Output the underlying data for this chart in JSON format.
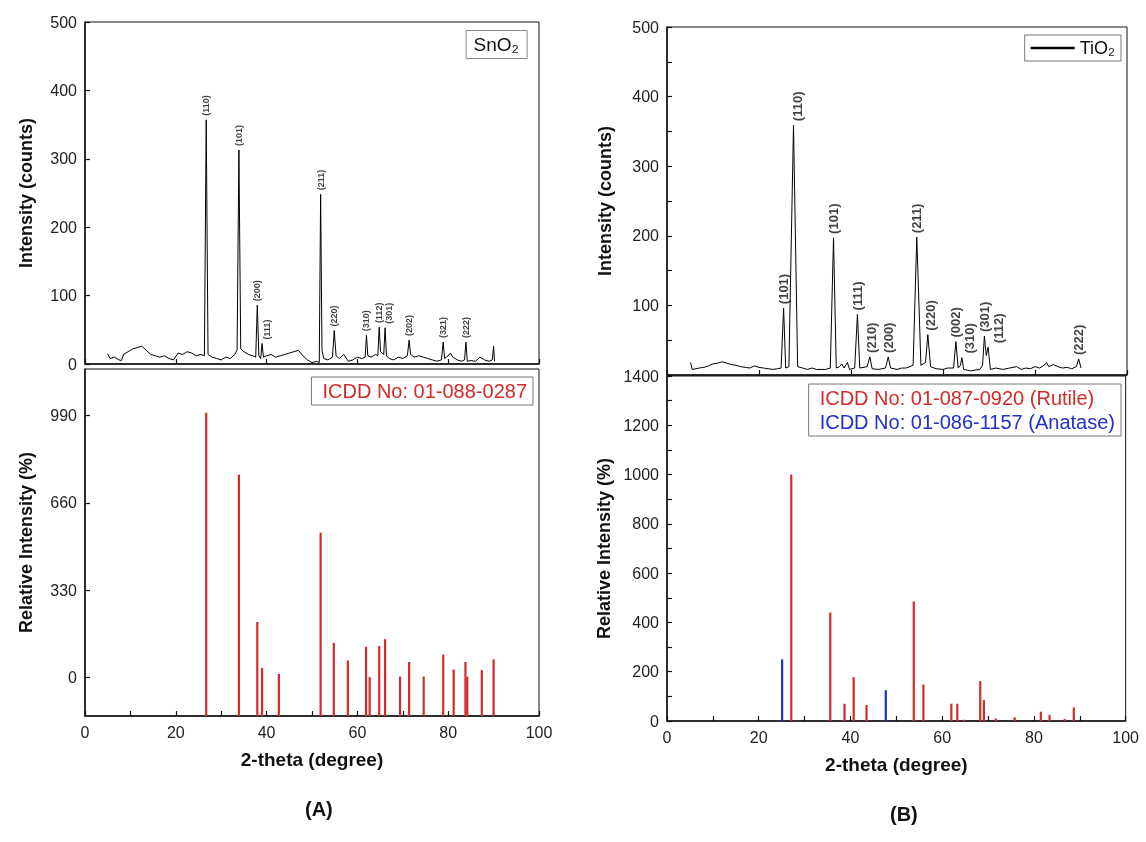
{
  "chart_data": [
    {
      "type": "line",
      "ylabel": "Intensity (counts)",
      "xlim": [
        0,
        100
      ],
      "xticks": [
        0,
        20,
        40,
        60,
        80,
        100
      ],
      "ylim": [
        0,
        500
      ],
      "yticks": [
        0,
        100,
        200,
        300,
        400,
        500
      ],
      "tick_labels": "y",
      "series": [
        {
          "color": "#000000",
          "x": [
            5,
            5.5,
            6.5,
            7.5,
            8,
            8.5,
            9.5,
            10.5,
            11.5,
            12.5,
            13.5,
            14.5,
            15.5,
            16.5,
            17.5,
            18.5,
            19.5,
            20.5,
            21.5,
            22.5,
            23.5,
            24.5,
            25.5,
            26.3,
            26.7,
            27.1,
            28,
            29,
            30,
            31,
            32,
            33,
            33.5,
            33.9,
            34.3,
            35,
            36,
            37,
            37.6,
            37.95,
            38.3,
            38.7,
            39,
            39.3,
            40,
            41,
            42,
            43,
            44,
            45,
            46,
            47,
            48,
            49,
            50,
            51,
            51.6,
            51.9,
            52.2,
            52.6,
            53.5,
            54.5,
            54.9,
            55.3,
            56,
            57,
            58,
            59,
            60,
            61,
            61.7,
            62,
            62.3,
            63,
            64,
            64.5,
            64.8,
            65.1,
            65.8,
            66.1,
            66.4,
            67,
            68,
            69,
            70,
            71,
            71.4,
            71.7,
            72.5,
            73.5,
            74.5,
            75.5,
            76.5,
            77.5,
            78.5,
            78.9,
            79.2,
            80,
            80.5,
            81,
            82,
            83,
            83.6,
            83.9,
            84.2,
            85,
            86,
            87,
            88,
            89,
            89.7,
            90,
            90.2
          ],
          "values": [
            15,
            8,
            10,
            6,
            5,
            14,
            18,
            22,
            24,
            26,
            20,
            14,
            12,
            10,
            12,
            8,
            6,
            16,
            14,
            18,
            16,
            12,
            14,
            12,
            357,
            14,
            10,
            8,
            6,
            10,
            8,
            14,
            20,
            313,
            22,
            18,
            14,
            12,
            10,
            86,
            12,
            8,
            30,
            10,
            12,
            14,
            10,
            12,
            14,
            16,
            18,
            20,
            12,
            6,
            2,
            4,
            2,
            248,
            20,
            8,
            6,
            10,
            49,
            12,
            8,
            14,
            4,
            6,
            10,
            8,
            10,
            42,
            12,
            10,
            14,
            12,
            54,
            18,
            14,
            53,
            12,
            8,
            6,
            10,
            8,
            12,
            35,
            14,
            10,
            12,
            10,
            8,
            6,
            4,
            6,
            32,
            8,
            12,
            16,
            10,
            6,
            4,
            6,
            32,
            4,
            5,
            4,
            10,
            6,
            4,
            6,
            26,
            4
          ]
        }
      ],
      "annotations": [
        "SnO₂",
        {
          "text": "(110)",
          "x": 26.7,
          "y": 357
        },
        {
          "text": "(101)",
          "x": 33.9,
          "y": 313
        },
        {
          "text": "(200)",
          "x": 37.95,
          "y": 86
        },
        {
          "text": "(111)",
          "x": 39,
          "y": 30
        },
        {
          "text": "(211)",
          "x": 51.9,
          "y": 248
        },
        {
          "text": "(220)",
          "x": 54.9,
          "y": 49
        },
        {
          "text": "(310)",
          "x": 62,
          "y": 42
        },
        {
          "text": "(112)",
          "x": 64.8,
          "y": 54
        },
        {
          "text": "(301)",
          "x": 66.1,
          "y": 53
        },
        {
          "text": "(202)",
          "x": 71.4,
          "y": 35
        },
        {
          "text": "(321)",
          "x": 78.9,
          "y": 32
        },
        {
          "text": "(222)",
          "x": 83.9,
          "y": 32
        }
      ]
    },
    {
      "type": "bar",
      "xlabel": "2-theta (degree)",
      "ylabel": "Relative Intensity (%)",
      "xlim": [
        0,
        100
      ],
      "xticks": [
        0,
        {
          "value": 10,
          "label": null
        },
        20,
        {
          "value": 30,
          "label": null
        },
        40,
        {
          "value": 50,
          "label": null
        },
        60,
        {
          "value": 70,
          "label": null
        },
        80,
        {
          "value": 90,
          "label": null
        },
        100
      ],
      "ylim": [
        -145,
        1165
      ],
      "yticks": [
        0,
        330,
        660,
        990
      ],
      "series": [
        {
          "name": "ICDD No: 01-088-0287",
          "color": "#d42a2a",
          "x": [
            26.7,
            33.9,
            37.95,
            39,
            42.7,
            51.9,
            54.8,
            57.9,
            61.9,
            62.7,
            64.8,
            66.1,
            69.4,
            71.4,
            74.6,
            78.9,
            81.2,
            83.8,
            84.2,
            87.4,
            90
          ],
          "base": [
            -145,
            -145,
            -145,
            -145,
            -145,
            -145,
            -145,
            -145,
            -145,
            -145,
            -145,
            -145,
            -145,
            -145,
            -145,
            -145,
            -145,
            -145,
            -145,
            -145,
            -145
          ],
          "values": [
            1145,
            911,
            355,
            181,
            159,
            692,
            276,
            210,
            261,
            147,
            264,
            290,
            149,
            204,
            149,
            232,
            175,
            204,
            149,
            173,
            214
          ]
        }
      ],
      "annotations": [
        "(A)"
      ]
    },
    {
      "type": "line",
      "ylabel": "Intensity (counts)",
      "xlim": [
        0,
        100
      ],
      "xticks": [
        0,
        20,
        40,
        60,
        80,
        100
      ],
      "ylim": [
        0,
        500
      ],
      "yticks": [
        {
          "value": 0,
          "label": null
        },
        {
          "value": 50,
          "label": null
        },
        100,
        {
          "value": 150,
          "label": null
        },
        200,
        {
          "value": 250,
          "label": null
        },
        300,
        {
          "value": 350,
          "label": null
        },
        400,
        {
          "value": 450,
          "label": null
        },
        500
      ],
      "tick_labels": "y",
      "legend": "top right",
      "series": [
        {
          "name": "TiO₂",
          "color": "#000000",
          "x": [
            5.1,
            5.5,
            7,
            8,
            9,
            10,
            11,
            12,
            13,
            14,
            15,
            16,
            17,
            18,
            19,
            20,
            21,
            22,
            23,
            24,
            24.8,
            25.35,
            25.8,
            26.5,
            27.5,
            28.4,
            29.5,
            30.5,
            31.5,
            32.5,
            33.5,
            34.5,
            35.5,
            36.2,
            36.8,
            37.5,
            38,
            38.5,
            39.2,
            39.7,
            40.8,
            41.4,
            41.9,
            43.5,
            44.1,
            44.6,
            46,
            47.5,
            48.1,
            48.6,
            50,
            51,
            52,
            53.5,
            54.3,
            55.2,
            56.2,
            56.7,
            57.3,
            58.5,
            60,
            61,
            62.3,
            62.8,
            63.3,
            63.8,
            64.1,
            64.5,
            66,
            68,
            68.6,
            69,
            69.4,
            69.8,
            70.3,
            71.5,
            73,
            74.5,
            76,
            77,
            78,
            79,
            80,
            81,
            82,
            82.5,
            83,
            84,
            85,
            86,
            87,
            88,
            89,
            89.5,
            90
          ],
          "values": [
            18,
            8,
            10,
            11,
            13,
            16,
            17,
            19,
            17,
            15,
            14,
            12,
            11,
            10,
            13,
            11,
            10,
            9,
            8,
            9,
            10,
            96,
            10,
            12,
            359,
            12,
            10,
            8,
            10,
            8,
            8,
            8,
            10,
            197,
            10,
            12,
            16,
            10,
            18,
            8,
            10,
            87,
            10,
            12,
            26,
            9,
            8,
            10,
            26,
            10,
            8,
            10,
            10,
            14,
            198,
            14,
            18,
            58,
            12,
            9,
            8,
            10,
            10,
            48,
            10,
            14,
            25,
            8,
            6,
            8,
            14,
            56,
            28,
            40,
            8,
            10,
            8,
            10,
            12,
            8,
            10,
            9,
            12,
            10,
            14,
            18,
            12,
            15,
            12,
            10,
            11,
            9,
            12,
            23,
            10
          ]
        }
      ],
      "annotations": [
        {
          "text": "(101)",
          "x": 25.35,
          "y": 96
        },
        {
          "text": "(110)",
          "x": 27.5,
          "y": 359
        },
        {
          "text": "(101)",
          "x": 36.2,
          "y": 197
        },
        {
          "text": "(111)",
          "x": 41.4,
          "y": 87
        },
        {
          "text": "(210)",
          "x": 44.1,
          "y": 26
        },
        {
          "text": "(200)",
          "x": 48.1,
          "y": 26
        },
        {
          "text": "(211)",
          "x": 54.3,
          "y": 198
        },
        {
          "text": "(220)",
          "x": 56.7,
          "y": 58
        },
        {
          "text": "(002)",
          "x": 62.8,
          "y": 48
        },
        {
          "text": "(310)",
          "x": 64.1,
          "y": 25
        },
        {
          "text": "(301)",
          "x": 69,
          "y": 56
        },
        {
          "text": "(112)",
          "x": 69.8,
          "y": 40
        },
        {
          "text": "(222)",
          "x": 89.5,
          "y": 23
        }
      ]
    },
    {
      "type": "bar",
      "xlabel": "2-theta (degree)",
      "ylabel": "Relative Intensity (%)",
      "xlim": [
        0,
        100
      ],
      "xticks": [
        0,
        {
          "value": 10,
          "label": null
        },
        20,
        {
          "value": 30,
          "label": null
        },
        40,
        {
          "value": 50,
          "label": null
        },
        60,
        {
          "value": 70,
          "label": null
        },
        80,
        {
          "value": 90,
          "label": null
        },
        100
      ],
      "ylim": [
        0,
        1400
      ],
      "yticks": [
        0,
        {
          "value": 100,
          "label": null
        },
        200,
        {
          "value": 300,
          "label": null
        },
        400,
        {
          "value": 500,
          "label": null
        },
        600,
        {
          "value": 700,
          "label": null
        },
        800,
        {
          "value": 900,
          "label": null
        },
        1000,
        {
          "value": 1100,
          "label": null
        },
        1200,
        {
          "value": 1300,
          "label": null
        },
        1400
      ],
      "series": [
        {
          "name": "ICDD No: 01-087-0920 (Rutile)",
          "color": "#d42a2a",
          "x": [
            27.1,
            35.6,
            38.7,
            40.7,
            43.5,
            53.8,
            55.9,
            62,
            63.3,
            64.8,
            68.3,
            69.1,
            71.7,
            75.8,
            81.5,
            83.4,
            86.7,
            88.7
          ],
          "values": [
            1000,
            440,
            70,
            178,
            65,
            485,
            148,
            70,
            70,
            5,
            162,
            85,
            10,
            15,
            38,
            25,
            8,
            55
          ]
        },
        {
          "name": "ICDD No: 01-086-1157 (Anatase)",
          "color": "#1f2fd0",
          "x": [
            25.1,
            47.7
          ],
          "values": [
            250,
            125
          ]
        }
      ],
      "annotations": [
        "(B)"
      ]
    }
  ]
}
